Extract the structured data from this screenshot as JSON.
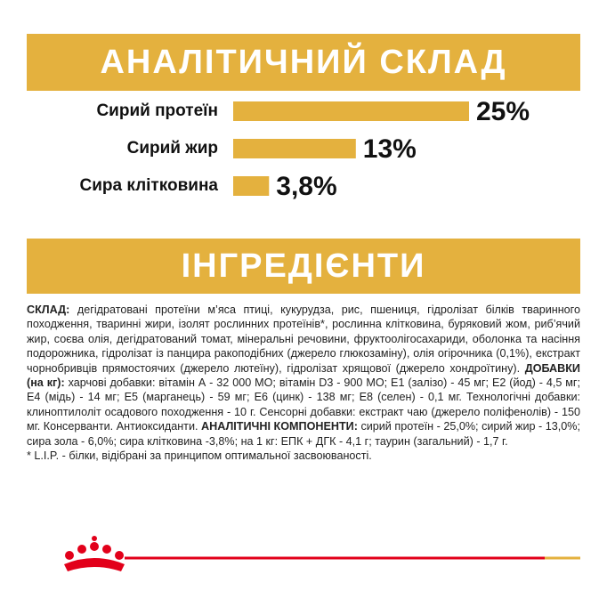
{
  "header": {
    "title": "АНАЛІТИЧНИЙ СКЛАД"
  },
  "chart_data": {
    "type": "bar",
    "categories": [
      "Сирий протеїн",
      "Сирий жир",
      "Сира клітковина"
    ],
    "values": [
      25,
      13,
      3.8
    ],
    "value_labels": [
      "25%",
      "13%",
      "3,8%"
    ],
    "color": "#e4b13e"
  },
  "ingredients": {
    "title": "ІНГРЕДІЄНТИ",
    "text": [
      "СКЛАД:",
      " дегідратовані протеїни м’яса птиці, кукурудза, рис, пшениця, гідролізат білків тваринного походження, тваринні жири, ізолят рослинних протеїнів*, рослинна клітковина, буряковий жом, риб’ячий жир, соєва олія, дегідратований томат, мінеральні речовини, фруктоолігосахариди, оболонка та насіння подорожника, гідролізат із панцира ракоподібних (джерело глюкозаміну), олія огірочника (0,1%), екстракт чорнобривців прямостоячих (джерело лютеїну), гідролізат хрящової (джерело хондроїтину). ",
      "ДОБАВКИ (на кг):",
      " харчові добавки: вітамін А - 32 000 МО; вітамін D3 - 900 МО; Е1 (залізо) - 45 мг; Е2 (йод) - 4,5 мг; Е4 (мідь) - 14 мг; Е5 (марганець) - 59 мг; Е6 (цинк) - 138 мг; Е8 (селен) - 0,1 мг. Технологічні добавки: клиноптилоліт осадового походження - 10 г. Сенсорні добавки: екстракт чаю (джерело поліфенолів) - 150 мг. Консерванти. Антиоксиданти. ",
      "АНАЛІТИЧНІ КОМПОНЕНТИ:",
      " сирий протеїн - 25,0%; сирий жир - 13,0%; сира зола - 6,0%; сира клітковина -3,8%; на 1 кг: ЕПК + ДГК - 4,1 г; таурин (загальний) - 1,7 г.",
      "* L.I.P. - білки, відібрані за принципом оптимальної засвоюваності."
    ]
  }
}
